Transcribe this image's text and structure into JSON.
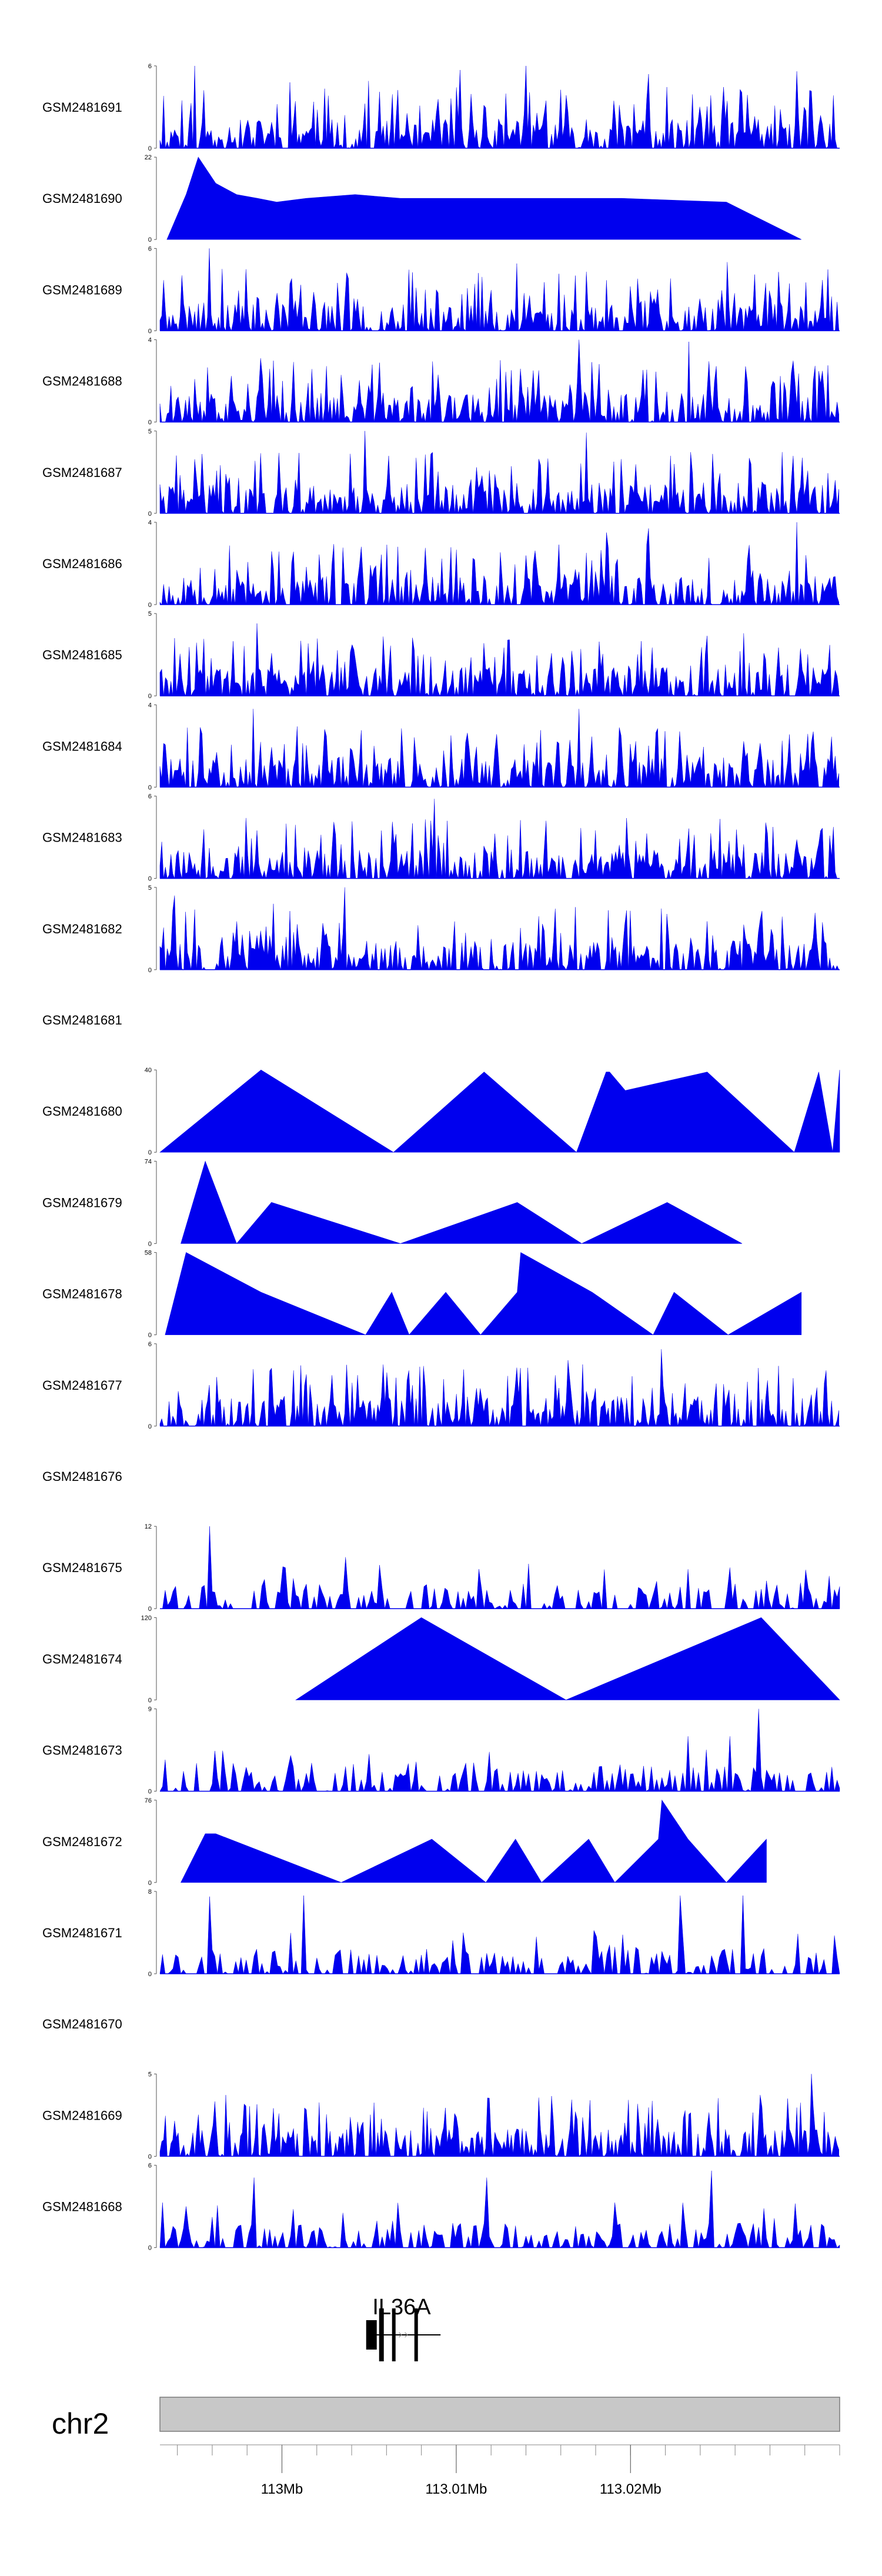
{
  "colors": {
    "signal": "#0000ee",
    "ideogram": "#c8c8c8",
    "ideogram_border": "#7a7a7a",
    "axis": "#555555"
  },
  "chart_data": {
    "type": "area",
    "description_style": "genome browser signal tracks",
    "x_range_bp": [
      112993000,
      113032000
    ],
    "tracks": [
      {
        "name": "GSM2481691",
        "ymax": "6",
        "ymin": "0",
        "pattern": "dense",
        "seed": 11,
        "peaks": [
          [
            112995000,
            6
          ],
          [
            113000500,
            4.8
          ],
          [
            113005000,
            4.9
          ],
          [
            113010200,
            5.7
          ],
          [
            113014000,
            6.2
          ],
          [
            113021000,
            5.4
          ],
          [
            113029500,
            5.6
          ]
        ]
      },
      {
        "name": "GSM2481690",
        "ymax": "22",
        "ymin": "0",
        "pattern": "triangles",
        "start": 112993400,
        "end": 113029800,
        "tri": [
          [
            112993400,
            112994500,
            12
          ],
          [
            112994500,
            112995200,
            22
          ],
          [
            112995200,
            112996200,
            15
          ],
          [
            112996200,
            112997400,
            12
          ],
          [
            112997400,
            112998600,
            11
          ],
          [
            112998600,
            112999700,
            10
          ],
          [
            112999700,
            113001400,
            11
          ],
          [
            113001400,
            113004200,
            12
          ],
          [
            113004200,
            113006800,
            11
          ],
          [
            113006800,
            113009900,
            11
          ],
          [
            113009900,
            113012400,
            11
          ],
          [
            113012400,
            113015800,
            11
          ],
          [
            113015800,
            113019500,
            11
          ],
          [
            113019500,
            113025500,
            10
          ],
          [
            113025500,
            113029800,
            0
          ]
        ]
      },
      {
        "name": "GSM2481689",
        "ymax": "6",
        "ymin": "0",
        "pattern": "dense",
        "seed": 23,
        "peaks": [
          [
            112995800,
            6
          ],
          [
            112996600,
            4.5
          ],
          [
            113013500,
            4.9
          ],
          [
            113017500,
            4.3
          ],
          [
            113025500,
            5
          ]
        ]
      },
      {
        "name": "GSM2481688",
        "ymax": "4",
        "ymin": "0",
        "pattern": "dense",
        "seed": 37,
        "peaks": [
          [
            112998800,
            3.1
          ],
          [
            113017000,
            4
          ],
          [
            113023300,
            3.9
          ],
          [
            113012500,
            3
          ]
        ]
      },
      {
        "name": "GSM2481687",
        "ymax": "5",
        "ymin": "0",
        "pattern": "dense",
        "seed": 41,
        "peaks": [
          [
            113004800,
            5
          ],
          [
            113017500,
            4.9
          ],
          [
            112995400,
            3.6
          ],
          [
            113008500,
            3.6
          ]
        ]
      },
      {
        "name": "GSM2481686",
        "ymax": "4",
        "ymin": "0",
        "pattern": "dense",
        "seed": 53,
        "peaks": [
          [
            113021000,
            3.7
          ],
          [
            113029500,
            4
          ],
          [
            113018600,
            3.5
          ]
        ]
      },
      {
        "name": "GSM2481685",
        "ymax": "5",
        "ymin": "0",
        "pattern": "dense",
        "seed": 61,
        "peaks": [
          [
            112998600,
            4.4
          ],
          [
            113026500,
            3.8
          ]
        ]
      },
      {
        "name": "GSM2481684",
        "ymax": "4",
        "ymin": "0",
        "pattern": "dense",
        "seed": 71,
        "peaks": [
          [
            112998400,
            3.8
          ],
          [
            113017000,
            3.8
          ],
          [
            112995400,
            2.6
          ]
        ]
      },
      {
        "name": "GSM2481683",
        "ymax": "6",
        "ymin": "0",
        "pattern": "dense",
        "seed": 79,
        "peaks": [
          [
            113008700,
            5.8
          ],
          [
            113000800,
            3.9
          ]
        ]
      },
      {
        "name": "GSM2481682",
        "ymax": "5",
        "ymin": "0",
        "pattern": "dense",
        "seed": 83,
        "peaks": [
          [
            113003600,
            5
          ],
          [
            112993800,
            4.5
          ],
          [
            112999500,
            4
          ],
          [
            113016800,
            3.8
          ]
        ]
      },
      {
        "name": "GSM2481681",
        "ymax": "",
        "ymin": "",
        "pattern": "empty"
      },
      {
        "name": "GSM2481680",
        "ymax": "40",
        "ymin": "0",
        "pattern": "triangles",
        "start": 112993000,
        "end": 113032000,
        "tri": [
          [
            112993000,
            112998800,
            40
          ],
          [
            112998800,
            113006400,
            0
          ],
          [
            113006400,
            113011600,
            39
          ],
          [
            113011600,
            113016900,
            0
          ],
          [
            113016900,
            113018600,
            39
          ],
          [
            113018600,
            113018800,
            39
          ],
          [
            113018800,
            113019700,
            30
          ],
          [
            113019700,
            113024400,
            39
          ],
          [
            113024400,
            113029400,
            0
          ],
          [
            113029400,
            113030800,
            39
          ],
          [
            113030800,
            113031600,
            0
          ],
          [
            113031600,
            113032000,
            40
          ]
        ]
      },
      {
        "name": "GSM2481679",
        "ymax": "74",
        "ymin": "0",
        "pattern": "triangles",
        "start": 112994200,
        "end": 113026400,
        "tri": [
          [
            112994200,
            112995600,
            74
          ],
          [
            112995600,
            112997400,
            0
          ],
          [
            112997400,
            112999400,
            37
          ],
          [
            112999400,
            113006800,
            0
          ],
          [
            113006800,
            113013500,
            37
          ],
          [
            113013500,
            113017200,
            0
          ],
          [
            113017200,
            113022100,
            37
          ],
          [
            113022100,
            113026400,
            0
          ]
        ]
      },
      {
        "name": "GSM2481678",
        "ymax": "58",
        "ymin": "0",
        "pattern": "triangles",
        "start": 112993300,
        "end": 113029800,
        "tri": [
          [
            112993300,
            112994500,
            58
          ],
          [
            112994500,
            112998800,
            30
          ],
          [
            112998800,
            113004800,
            0
          ],
          [
            113004800,
            113006300,
            30
          ],
          [
            113006300,
            113007300,
            0
          ],
          [
            113007300,
            113009400,
            30
          ],
          [
            113009400,
            113011400,
            0
          ],
          [
            113011400,
            113013500,
            30
          ],
          [
            113013500,
            113013700,
            58
          ],
          [
            113013700,
            113017800,
            30
          ],
          [
            113017800,
            113021300,
            0
          ],
          [
            113021300,
            113022500,
            30
          ],
          [
            113022500,
            113025600,
            0
          ],
          [
            113025600,
            113029800,
            30
          ]
        ]
      },
      {
        "name": "GSM2481677",
        "ymax": "6",
        "ymin": "0",
        "pattern": "dense",
        "seed": 97,
        "peaks": [
          [
            113021800,
            5.6
          ],
          [
            113016400,
            4.8
          ],
          [
            113006000,
            3.9
          ]
        ]
      },
      {
        "name": "GSM2481676",
        "ymax": "",
        "ymin": "",
        "pattern": "empty"
      },
      {
        "name": "GSM2481675",
        "ymax": "12",
        "ymin": "0",
        "pattern": "sparse",
        "seed": 101,
        "peaks": [
          [
            112995800,
            12
          ],
          [
            113003700,
            7.5
          ],
          [
            113021500,
            4
          ]
        ]
      },
      {
        "name": "GSM2481674",
        "ymax": "120",
        "ymin": "0",
        "pattern": "triangles",
        "start": 113000800,
        "end": 113032000,
        "tri": [
          [
            113000800,
            113008000,
            120
          ],
          [
            113008000,
            113016300,
            0
          ],
          [
            113016300,
            113027500,
            120
          ],
          [
            113027500,
            113032000,
            0
          ]
        ]
      },
      {
        "name": "GSM2481673",
        "ymax": "9",
        "ymin": "0",
        "pattern": "sparse",
        "seed": 113,
        "peaks": [
          [
            113027400,
            9
          ],
          [
            113025700,
            6
          ],
          [
            113023300,
            6
          ]
        ]
      },
      {
        "name": "GSM2481672",
        "ymax": "76",
        "ymin": "0",
        "pattern": "triangles",
        "start": 112994200,
        "end": 113027800,
        "tri": [
          [
            112994200,
            112995600,
            45
          ],
          [
            112995600,
            112996200,
            45
          ],
          [
            112996200,
            113003400,
            0
          ],
          [
            113003400,
            113008600,
            40
          ],
          [
            113008600,
            113011700,
            0
          ],
          [
            113011700,
            113013400,
            40
          ],
          [
            113013400,
            113014900,
            0
          ],
          [
            113014900,
            113017600,
            40
          ],
          [
            113017600,
            113019100,
            0
          ],
          [
            113019100,
            113021600,
            40
          ],
          [
            113021600,
            113021800,
            76
          ],
          [
            113021800,
            113023300,
            40
          ],
          [
            113023300,
            113025500,
            0
          ],
          [
            113025500,
            113027800,
            40
          ]
        ]
      },
      {
        "name": "GSM2481671",
        "ymax": "8",
        "ymin": "0",
        "pattern": "sparse",
        "seed": 127,
        "peaks": [
          [
            112995800,
            7.5
          ],
          [
            113001300,
            7.6
          ],
          [
            113022900,
            7.6
          ],
          [
            113026400,
            7.6
          ]
        ]
      },
      {
        "name": "GSM2481670",
        "ymax": "",
        "ymin": "",
        "pattern": "empty"
      },
      {
        "name": "GSM2481669",
        "ymax": "5",
        "ymin": "0",
        "pattern": "dense",
        "seed": 131,
        "peaks": [
          [
            113030400,
            5
          ],
          [
            113017700,
            3.4
          ]
        ]
      },
      {
        "name": "GSM2481668",
        "ymax": "6",
        "ymin": "0",
        "pattern": "sparse",
        "seed": 139,
        "peaks": [
          [
            113024700,
            5.6
          ],
          [
            113011800,
            5.1
          ],
          [
            112998400,
            5.1
          ]
        ]
      }
    ],
    "gene": {
      "name": "IL36A",
      "start": 113004900,
      "end": 113009100
    },
    "chromosome": "chr2",
    "x_ticks": [
      {
        "pos": 113000000,
        "label": "113Mb"
      },
      {
        "pos": 113010000,
        "label": "113.01Mb"
      },
      {
        "pos": 113020000,
        "label": "113.02Mb"
      }
    ],
    "minor_tick_step_bp": 2000
  }
}
